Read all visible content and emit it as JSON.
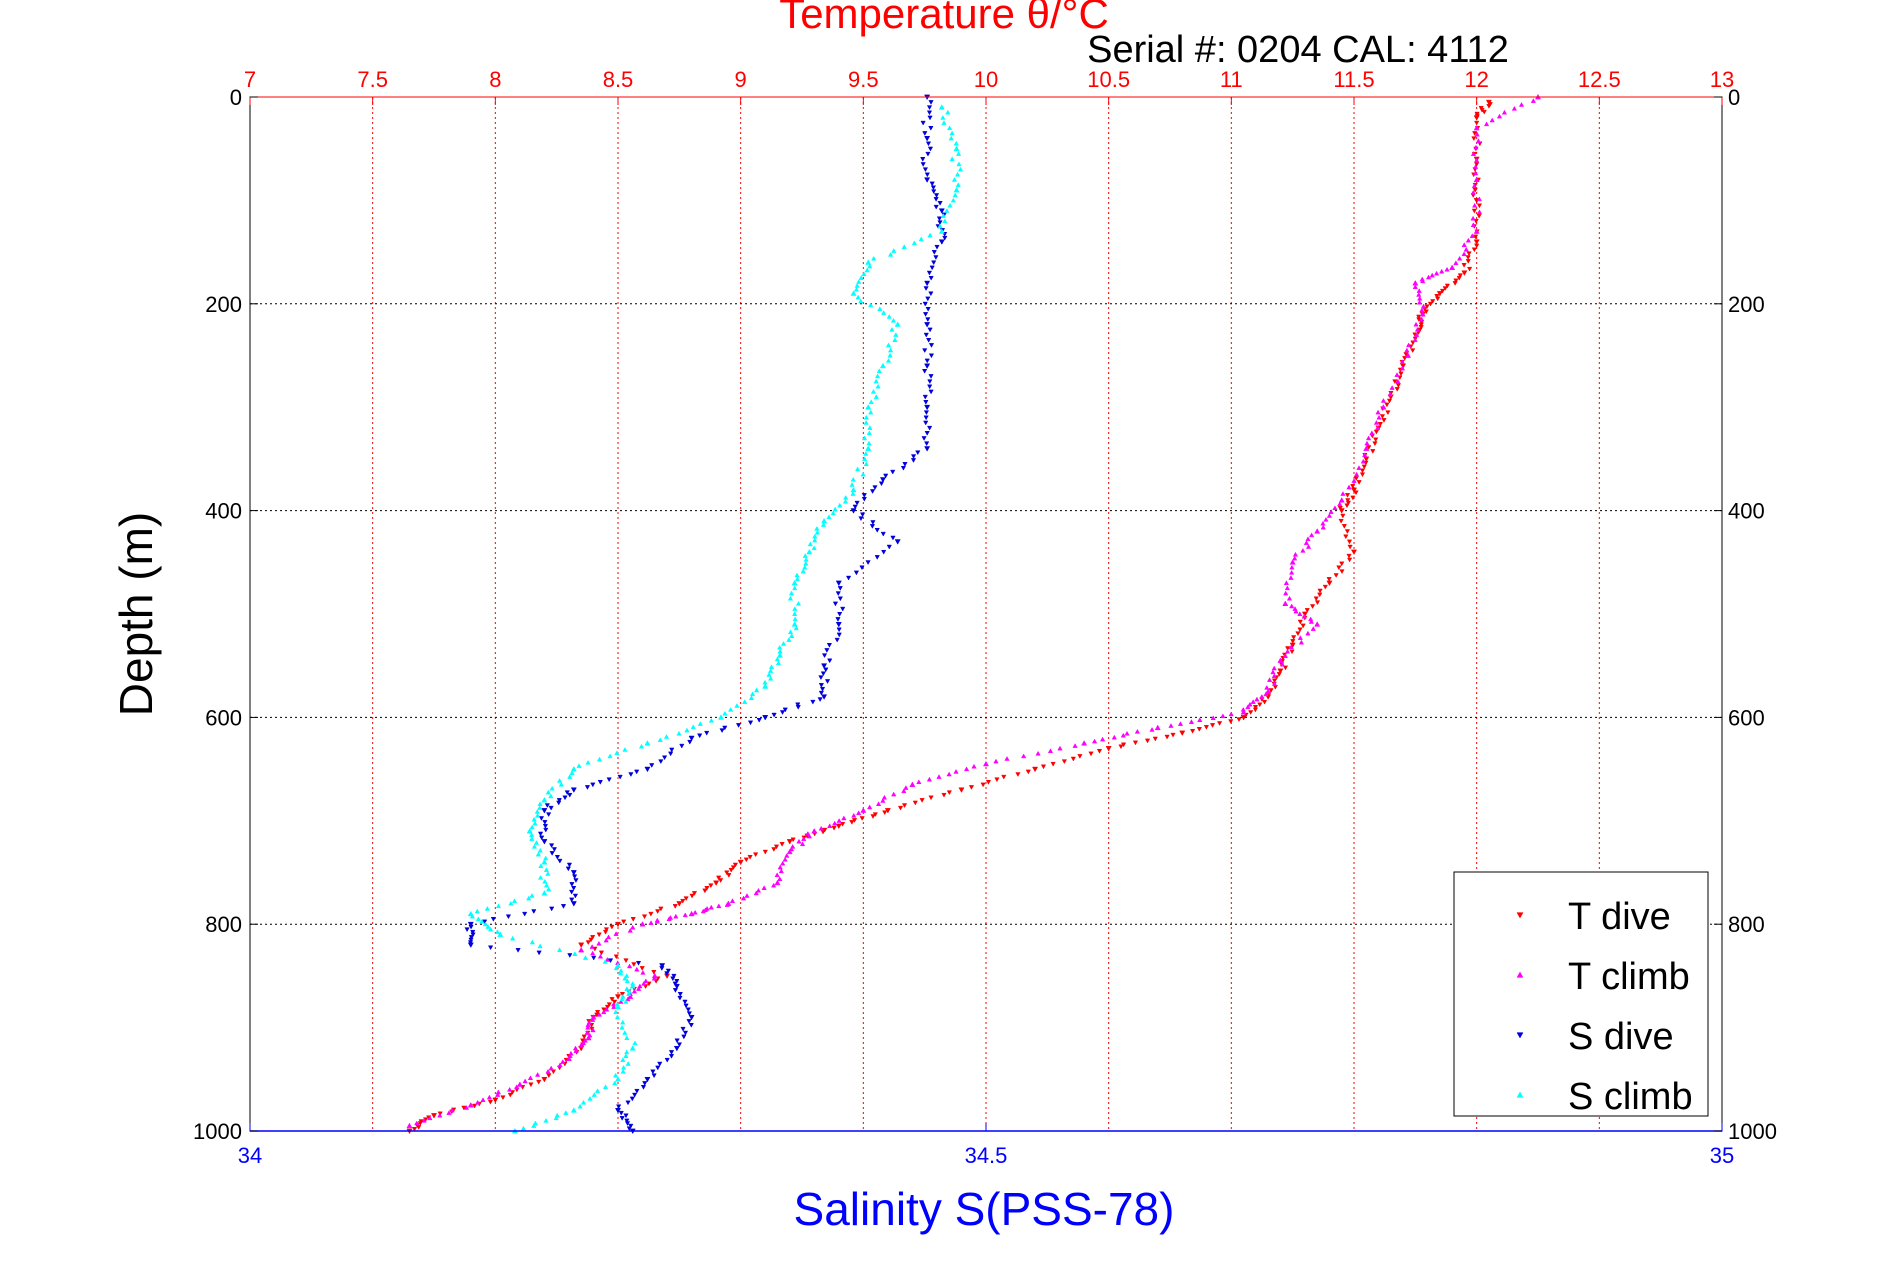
{
  "chart_data": {
    "type": "scatter",
    "title": "Temperature θ/°C",
    "subtitle": "Serial #: 0204  CAL: 4112",
    "ylabel": "Depth (m)",
    "xlabel": "Salinity S(PSS-78)",
    "x2label": "Temperature θ/°C",
    "ylim": [
      1000,
      0
    ],
    "y_ticks": [
      "0",
      "200",
      "400",
      "600",
      "800",
      "1000"
    ],
    "y_tick_values": [
      0,
      200,
      400,
      600,
      800,
      1000
    ],
    "x_bottom_lim": [
      34,
      35
    ],
    "x_bottom_ticks": [
      "34",
      "34.5",
      "35"
    ],
    "x_bottom_tick_values": [
      34,
      34.5,
      35
    ],
    "x_top_lim": [
      7,
      13
    ],
    "x_top_ticks": [
      "7",
      "7.5",
      "8",
      "8.5",
      "9",
      "9.5",
      "10",
      "10.5",
      "11",
      "11.5",
      "12",
      "12.5",
      "13"
    ],
    "x_top_tick_values": [
      7,
      7.5,
      8,
      8.5,
      9,
      9.5,
      10,
      10.5,
      11,
      11.5,
      12,
      12.5,
      13
    ],
    "grid": true,
    "legend_position": "bottom-right",
    "colors": {
      "temperature_axis": "#ff0000",
      "salinity_axis": "#0000ff",
      "t_dive": "#ff0000",
      "t_climb": "#ff00ff",
      "s_dive": "#0000dd",
      "s_climb": "#00ffff"
    },
    "series": [
      {
        "name": "T dive",
        "axis": "temperature",
        "marker": "triangle-down",
        "color": "#ff0000",
        "points": [
          [
            12.05,
            5
          ],
          [
            12.0,
            20
          ],
          [
            12.0,
            60
          ],
          [
            12.0,
            100
          ],
          [
            12.0,
            140
          ],
          [
            11.95,
            170
          ],
          [
            11.85,
            190
          ],
          [
            11.78,
            210
          ],
          [
            11.75,
            230
          ],
          [
            11.7,
            260
          ],
          [
            11.65,
            290
          ],
          [
            11.6,
            320
          ],
          [
            11.55,
            350
          ],
          [
            11.5,
            380
          ],
          [
            11.45,
            400
          ],
          [
            11.5,
            440
          ],
          [
            11.4,
            470
          ],
          [
            11.3,
            500
          ],
          [
            11.25,
            530
          ],
          [
            11.2,
            555
          ],
          [
            11.15,
            580
          ],
          [
            11.05,
            600
          ],
          [
            10.8,
            615
          ],
          [
            10.5,
            630
          ],
          [
            10.2,
            650
          ],
          [
            9.9,
            670
          ],
          [
            9.6,
            690
          ],
          [
            9.4,
            705
          ],
          [
            9.2,
            720
          ],
          [
            9.0,
            740
          ],
          [
            8.9,
            760
          ],
          [
            8.75,
            780
          ],
          [
            8.5,
            800
          ],
          [
            8.35,
            820
          ],
          [
            8.7,
            850
          ],
          [
            8.5,
            870
          ],
          [
            8.4,
            890
          ],
          [
            8.35,
            920
          ],
          [
            8.2,
            950
          ],
          [
            8.0,
            970
          ],
          [
            7.75,
            985
          ],
          [
            7.65,
            1000
          ]
        ]
      },
      {
        "name": "T climb",
        "axis": "temperature",
        "marker": "triangle-up",
        "color": "#ff00ff",
        "points": [
          [
            12.25,
            0
          ],
          [
            12.0,
            30
          ],
          [
            12.0,
            80
          ],
          [
            12.0,
            130
          ],
          [
            11.9,
            165
          ],
          [
            11.75,
            180
          ],
          [
            11.78,
            210
          ],
          [
            11.72,
            250
          ],
          [
            11.62,
            300
          ],
          [
            11.55,
            340
          ],
          [
            11.45,
            390
          ],
          [
            11.35,
            420
          ],
          [
            11.25,
            450
          ],
          [
            11.22,
            490
          ],
          [
            11.35,
            510
          ],
          [
            11.2,
            545
          ],
          [
            11.15,
            575
          ],
          [
            11.05,
            595
          ],
          [
            10.7,
            610
          ],
          [
            10.4,
            625
          ],
          [
            10.0,
            645
          ],
          [
            9.7,
            665
          ],
          [
            9.5,
            690
          ],
          [
            9.3,
            710
          ],
          [
            9.2,
            730
          ],
          [
            9.15,
            760
          ],
          [
            8.95,
            780
          ],
          [
            8.8,
            790
          ],
          [
            8.6,
            800
          ],
          [
            8.35,
            825
          ],
          [
            8.65,
            850
          ],
          [
            8.55,
            870
          ],
          [
            8.4,
            890
          ],
          [
            8.38,
            910
          ],
          [
            8.3,
            930
          ],
          [
            8.1,
            955
          ],
          [
            7.9,
            975
          ],
          [
            7.65,
            995
          ]
        ]
      },
      {
        "name": "S dive",
        "axis": "salinity",
        "marker": "triangle-down",
        "color": "#0000dd",
        "points": [
          [
            34.46,
            0
          ],
          [
            34.46,
            40
          ],
          [
            34.46,
            80
          ],
          [
            34.47,
            110
          ],
          [
            34.47,
            140
          ],
          [
            34.46,
            180
          ],
          [
            34.46,
            220
          ],
          [
            34.46,
            260
          ],
          [
            34.46,
            300
          ],
          [
            34.46,
            340
          ],
          [
            34.43,
            370
          ],
          [
            34.41,
            400
          ],
          [
            34.44,
            430
          ],
          [
            34.4,
            470
          ],
          [
            34.4,
            510
          ],
          [
            34.39,
            550
          ],
          [
            34.39,
            580
          ],
          [
            34.35,
            600
          ],
          [
            34.3,
            620
          ],
          [
            34.27,
            650
          ],
          [
            34.22,
            670
          ],
          [
            34.2,
            690
          ],
          [
            34.2,
            720
          ],
          [
            34.22,
            750
          ],
          [
            34.22,
            780
          ],
          [
            34.15,
            800
          ],
          [
            34.15,
            820
          ],
          [
            34.28,
            840
          ],
          [
            34.29,
            860
          ],
          [
            34.3,
            890
          ],
          [
            34.29,
            920
          ],
          [
            34.27,
            950
          ],
          [
            34.25,
            980
          ],
          [
            34.26,
            1000
          ]
        ]
      },
      {
        "name": "S climb",
        "axis": "salinity",
        "marker": "triangle-up",
        "color": "#00ffff",
        "points": [
          [
            34.47,
            10
          ],
          [
            34.48,
            50
          ],
          [
            34.48,
            90
          ],
          [
            34.47,
            130
          ],
          [
            34.42,
            160
          ],
          [
            34.41,
            190
          ],
          [
            34.44,
            220
          ],
          [
            34.43,
            260
          ],
          [
            34.42,
            300
          ],
          [
            34.42,
            340
          ],
          [
            34.41,
            380
          ],
          [
            34.39,
            410
          ],
          [
            34.38,
            440
          ],
          [
            34.37,
            470
          ],
          [
            34.37,
            510
          ],
          [
            34.36,
            540
          ],
          [
            34.35,
            570
          ],
          [
            34.32,
            600
          ],
          [
            34.27,
            625
          ],
          [
            34.22,
            650
          ],
          [
            34.2,
            680
          ],
          [
            34.19,
            710
          ],
          [
            34.2,
            740
          ],
          [
            34.2,
            770
          ],
          [
            34.15,
            790
          ],
          [
            34.17,
            810
          ],
          [
            34.25,
            840
          ],
          [
            34.26,
            860
          ],
          [
            34.25,
            880
          ],
          [
            34.26,
            920
          ],
          [
            34.25,
            950
          ],
          [
            34.22,
            980
          ],
          [
            34.18,
            1000
          ]
        ]
      }
    ]
  }
}
